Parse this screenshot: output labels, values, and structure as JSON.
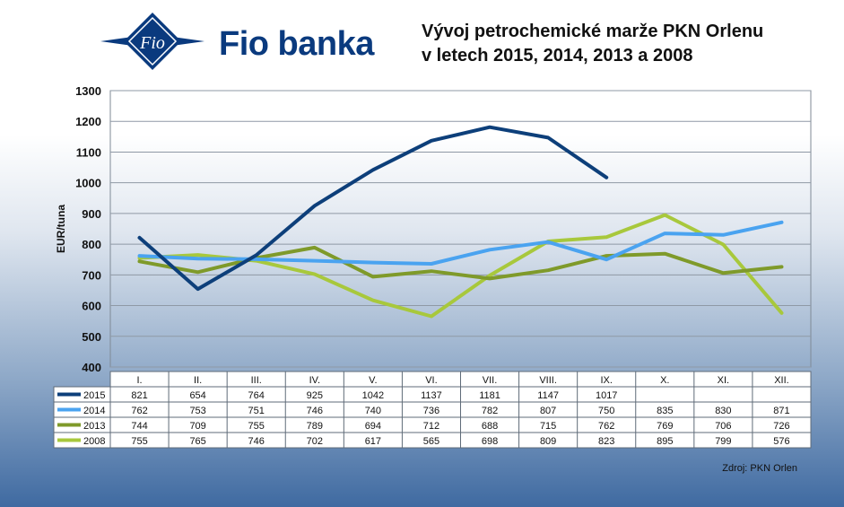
{
  "brand": {
    "name": "Fio banka",
    "logo_text": "Fio"
  },
  "title": {
    "line1": "Vývoj petrochemické marže PKN Orlenu",
    "line2": "v letech 2015, 2014, 2013 a 2008"
  },
  "source": "Zdroj: PKN Orlen",
  "colors": {
    "brand": "#0a3a7e"
  },
  "chart_data": {
    "type": "line",
    "title": "Vývoj petrochemické marže PKN Orlenu v letech 2015, 2014, 2013 a 2008",
    "ylabel": "EUR/tuna",
    "xlabel": "",
    "ylim": [
      400,
      1300
    ],
    "yticks": [
      "400",
      "500",
      "600",
      "700",
      "800",
      "900",
      "1000",
      "1100",
      "1200",
      "1300"
    ],
    "grid": true,
    "legend": "data-table",
    "categories": [
      "I.",
      "II.",
      "III.",
      "IV.",
      "V.",
      "VI.",
      "VII.",
      "VIII.",
      "IX.",
      "X.",
      "XI.",
      "XII."
    ],
    "series": [
      {
        "name": "2015",
        "color": "#0d3f7a",
        "values": [
          821,
          654,
          764,
          925,
          1042,
          1137,
          1181,
          1147,
          1017,
          null,
          null,
          null
        ]
      },
      {
        "name": "2014",
        "color": "#4aa3f0",
        "values": [
          762,
          753,
          751,
          746,
          740,
          736,
          782,
          807,
          750,
          835,
          830,
          871
        ]
      },
      {
        "name": "2013",
        "color": "#7f9a2a",
        "values": [
          744,
          709,
          755,
          789,
          694,
          712,
          688,
          715,
          762,
          769,
          706,
          726
        ]
      },
      {
        "name": "2008",
        "color": "#a8c83c",
        "values": [
          755,
          765,
          746,
          702,
          617,
          565,
          698,
          809,
          823,
          895,
          799,
          576
        ]
      }
    ]
  }
}
